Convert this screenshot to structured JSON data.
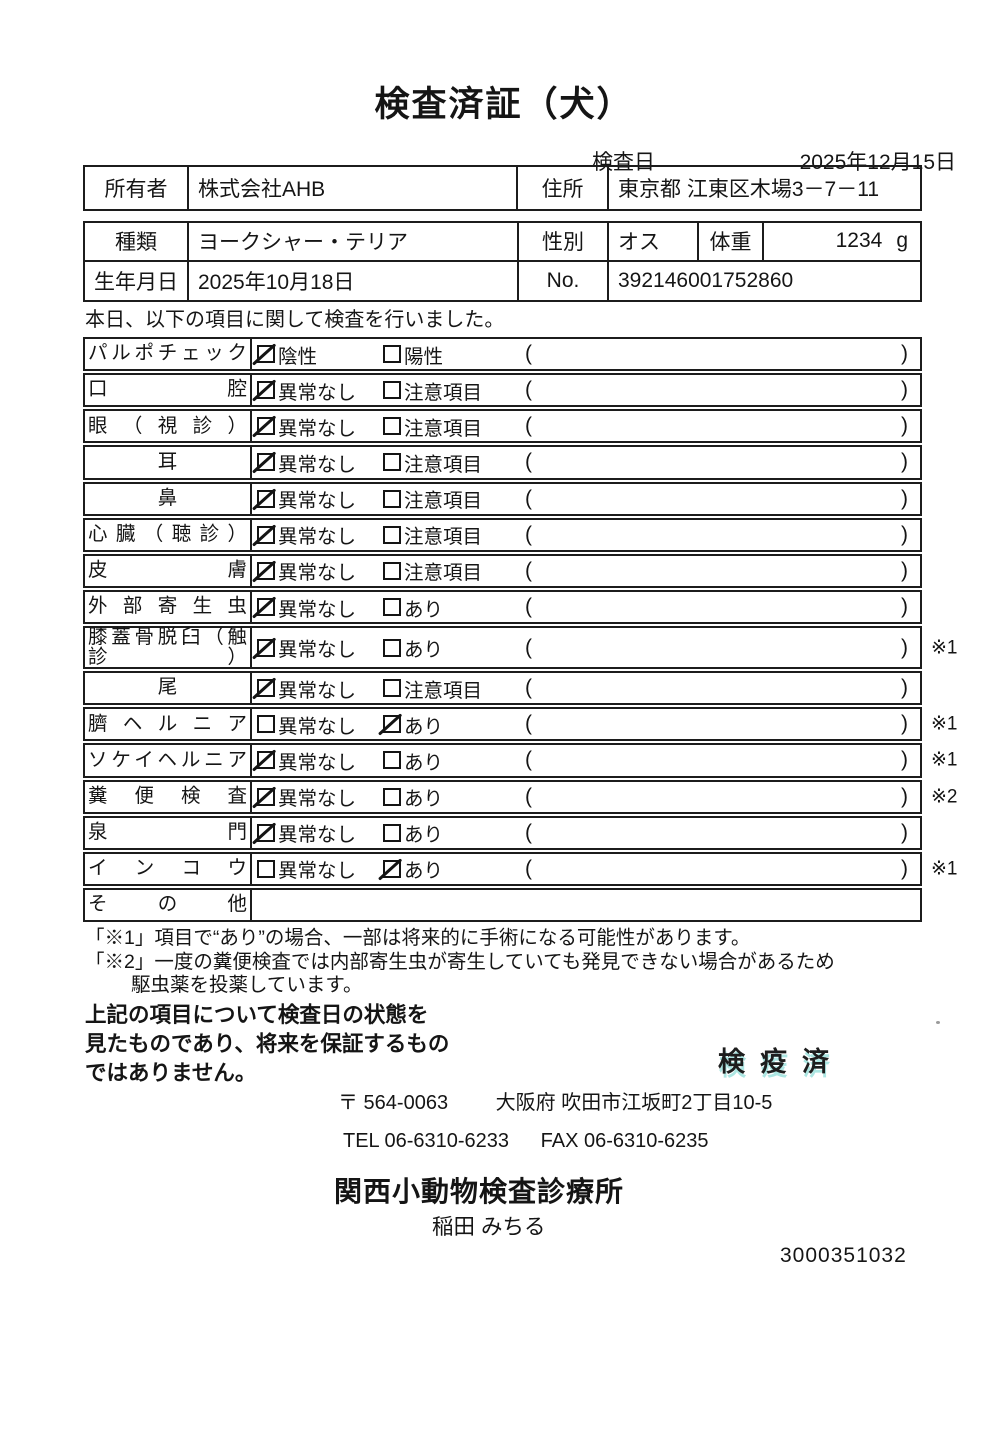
{
  "title": "検査済証（犬）",
  "inspection_date": {
    "label": "検査日",
    "value": "2025年12月15日"
  },
  "owner": {
    "owner_label": "所有者",
    "owner_value": "株式会社AHB",
    "address_label": "住所",
    "address_value": "東京都 江東区木場3－7－11"
  },
  "pet": {
    "breed_label": "種類",
    "breed_value": "ヨークシャー・テリア",
    "sex_label": "性別",
    "sex_value": "オス",
    "weight_label": "体重",
    "weight_value": "1234",
    "weight_unit": "g",
    "birth_label": "生年月日",
    "birth_value": "2025年10月18日",
    "no_label": "No.",
    "no_value": "392146001752860"
  },
  "intro": "本日、以下の項目に関して検査を行いました。",
  "checklist": {
    "paren_open": "(",
    "paren_close": ")",
    "rows": [
      {
        "label": "パルポチェック",
        "opt1": "陰性",
        "opt2": "陽性",
        "checked": 1,
        "note": ""
      },
      {
        "label": "口腔",
        "opt1": "異常なし",
        "opt2": "注意項目",
        "checked": 1,
        "note": ""
      },
      {
        "label": "眼（視診）",
        "opt1": "異常なし",
        "opt2": "注意項目",
        "checked": 1,
        "note": ""
      },
      {
        "label": "耳",
        "opt1": "異常なし",
        "opt2": "注意項目",
        "checked": 1,
        "note": ""
      },
      {
        "label": "鼻",
        "opt1": "異常なし",
        "opt2": "注意項目",
        "checked": 1,
        "note": ""
      },
      {
        "label": "心臓（聴診）",
        "opt1": "異常なし",
        "opt2": "注意項目",
        "checked": 1,
        "note": ""
      },
      {
        "label": "皮膚",
        "opt1": "異常なし",
        "opt2": "注意項目",
        "checked": 1,
        "note": ""
      },
      {
        "label": "外部寄生虫",
        "opt1": "異常なし",
        "opt2": "あり",
        "checked": 1,
        "note": ""
      },
      {
        "label": "膝蓋骨脱臼（触診）",
        "opt1": "異常なし",
        "opt2": "あり",
        "checked": 1,
        "note": "※1"
      },
      {
        "label": "尾",
        "opt1": "異常なし",
        "opt2": "注意項目",
        "checked": 1,
        "note": ""
      },
      {
        "label": "臍ヘルニア",
        "opt1": "異常なし",
        "opt2": "あり",
        "checked": 2,
        "note": "※1"
      },
      {
        "label": "ソケイヘルニア",
        "opt1": "異常なし",
        "opt2": "あり",
        "checked": 1,
        "note": "※1"
      },
      {
        "label": "糞便検査",
        "opt1": "異常なし",
        "opt2": "あり",
        "checked": 1,
        "note": "※2"
      },
      {
        "label": "泉門",
        "opt1": "異常なし",
        "opt2": "あり",
        "checked": 1,
        "note": ""
      },
      {
        "label": "インコウ",
        "opt1": "異常なし",
        "opt2": "あり",
        "checked": 2,
        "note": "※1"
      },
      {
        "label": "その他",
        "opt1": "",
        "opt2": "",
        "checked": 0,
        "note": ""
      }
    ]
  },
  "notes": {
    "note1": "「※1」項目で“あり”の場合、一部は将来的に手術になる可能性があります。",
    "note2": "「※2」一度の糞便検査では内部寄生虫が寄生していても発見できない場合があるため",
    "note2b": "駆虫薬を投薬しています。"
  },
  "disclaimer": "上記の項目について検査日の状態を\n見たものであり、将来を保証するもの\nではありません。",
  "stamp": "検疫済",
  "clinic": {
    "postal": "〒 564-0063",
    "address": "大阪府 吹田市江坂町2丁目10-5",
    "tel": "TEL 06-6310-6233",
    "fax": "FAX 06-6310-6235",
    "name": "関西小動物検査診療所",
    "vet_name": "稲田 みちる",
    "serial": "3000351032"
  }
}
